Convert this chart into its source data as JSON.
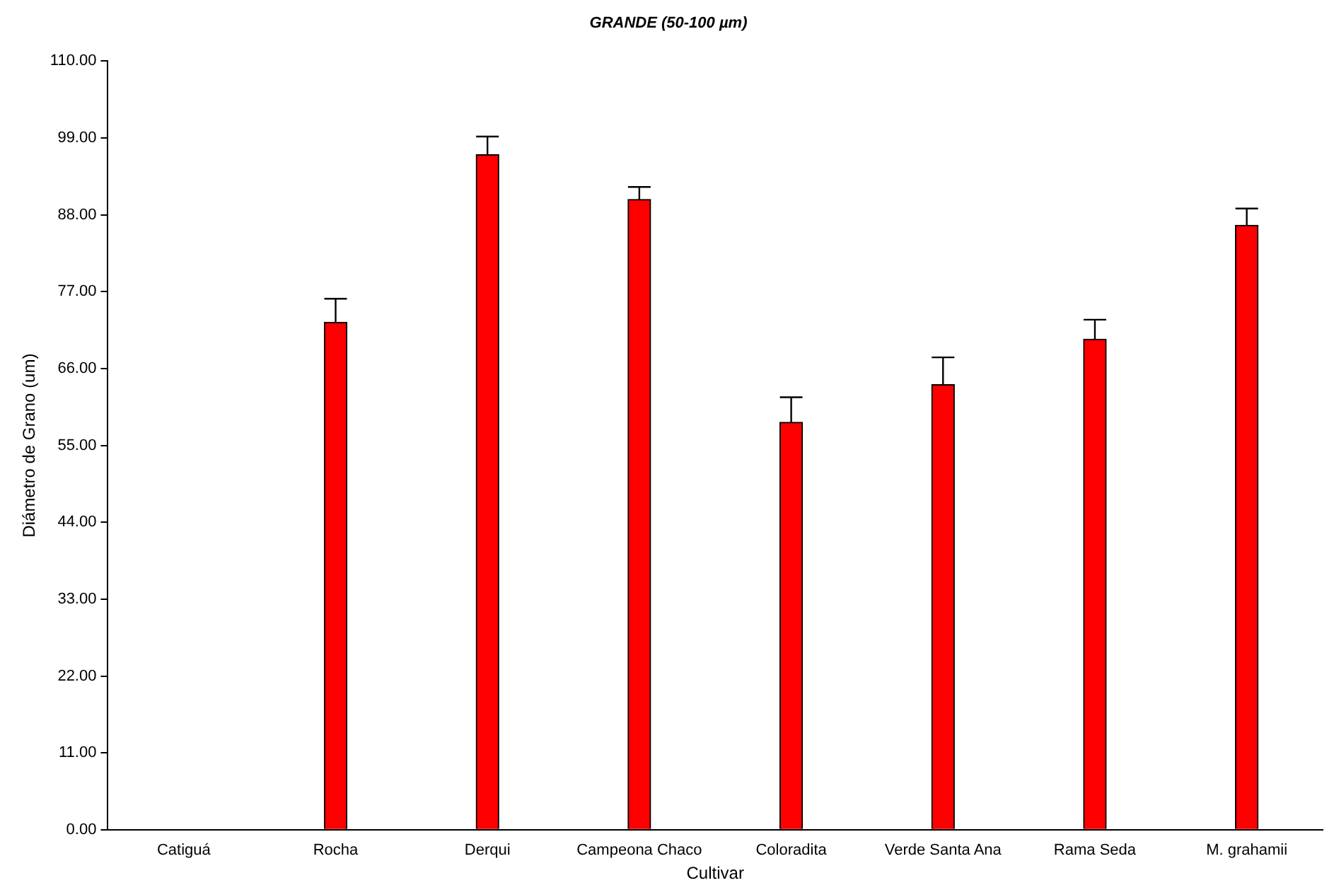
{
  "chart_data": {
    "type": "bar",
    "title": "GRANDE (50-100 µm)",
    "xlabel": "Cultivar",
    "ylabel": "Diámetro de Grano (um)",
    "categories": [
      "Catiguá",
      "Rocha",
      "Derqui",
      "Campeona Chaco",
      "Coloradita",
      "Verde Santa Ana",
      "Rama Seda",
      "M. grahamii"
    ],
    "values": [
      null,
      72.6,
      96.6,
      90.2,
      58.3,
      63.7,
      70.2,
      86.5
    ],
    "errors": [
      null,
      [
        72.6,
        76.0
      ],
      [
        96.6,
        99.2
      ],
      [
        90.2,
        92.0
      ],
      [
        58.3,
        61.9
      ],
      [
        63.7,
        67.6
      ],
      [
        70.2,
        73.0
      ],
      [
        86.5,
        88.9
      ]
    ],
    "color": "#ff0000",
    "ylim": [
      0,
      110
    ],
    "yticks": [
      {
        "value": 0,
        "label": "0.00"
      },
      {
        "value": 11,
        "label": "11.00"
      },
      {
        "value": 22,
        "label": "22.00"
      },
      {
        "value": 33,
        "label": "33.00"
      },
      {
        "value": 44,
        "label": "44.00"
      },
      {
        "value": 55,
        "label": "55.00"
      },
      {
        "value": 66,
        "label": "66.00"
      },
      {
        "value": 77,
        "label": "77.00"
      },
      {
        "value": 88,
        "label": "88.00"
      },
      {
        "value": 99,
        "label": "99.00"
      },
      {
        "value": 110,
        "label": "110.00"
      }
    ],
    "grid": false,
    "legend": false
  }
}
